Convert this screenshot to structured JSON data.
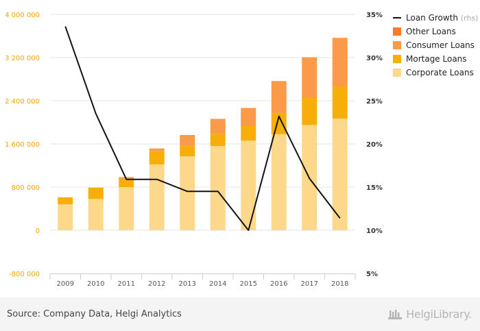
{
  "chart_data": {
    "type": "bar",
    "stacked": true,
    "categories": [
      "2009",
      "2010",
      "2011",
      "2012",
      "2013",
      "2014",
      "2015",
      "2016",
      "2017",
      "2018"
    ],
    "series": [
      {
        "name": "Corporate Loans",
        "color": "#fdd88a",
        "values": [
          480000,
          580000,
          800000,
          1220000,
          1370000,
          1560000,
          1660000,
          1780000,
          1950000,
          2070000
        ]
      },
      {
        "name": "Mortage Loans",
        "color": "#f8ae08",
        "values": [
          130000,
          210000,
          160000,
          250000,
          190000,
          220000,
          270000,
          390000,
          500000,
          590000
        ]
      },
      {
        "name": "Consumer Loans",
        "color": "#fb9a48",
        "values": [
          0,
          0,
          20000,
          40000,
          200000,
          280000,
          330000,
          590000,
          750000,
          900000
        ]
      },
      {
        "name": "Other Loans",
        "color": "#fb7a2c",
        "values": [
          0,
          0,
          5000,
          5000,
          5000,
          5000,
          5000,
          5000,
          5000,
          5000
        ]
      }
    ],
    "line_series": {
      "name": "Loan Growth",
      "name_suffix": "(rhs)",
      "color": "#111111",
      "axis": "right",
      "values": [
        33.6,
        23.5,
        15.9,
        15.9,
        14.5,
        14.5,
        10.0,
        23.2,
        16.0,
        11.4
      ]
    },
    "y_left": {
      "min": -800000,
      "max": 4000000,
      "ticks": [
        -800000,
        0,
        800000,
        1600000,
        2400000,
        3200000,
        4000000
      ],
      "tick_labels": [
        "-800 000",
        "0",
        "800 000",
        "1 600 000",
        "2 400 000",
        "3 200 000",
        "4 000 000"
      ],
      "color": "#f7a600"
    },
    "y_right": {
      "min": 5,
      "max": 35,
      "ticks": [
        5,
        10,
        15,
        20,
        25,
        30,
        35
      ],
      "tick_labels": [
        "5%",
        "10%",
        "15%",
        "20%",
        "25%",
        "30%",
        "35%"
      ]
    },
    "grid": true,
    "legend_position": "top-right"
  },
  "footer": {
    "source": "Source: Company Data, Helgi Analytics",
    "brand": "HelgiLibrary."
  }
}
